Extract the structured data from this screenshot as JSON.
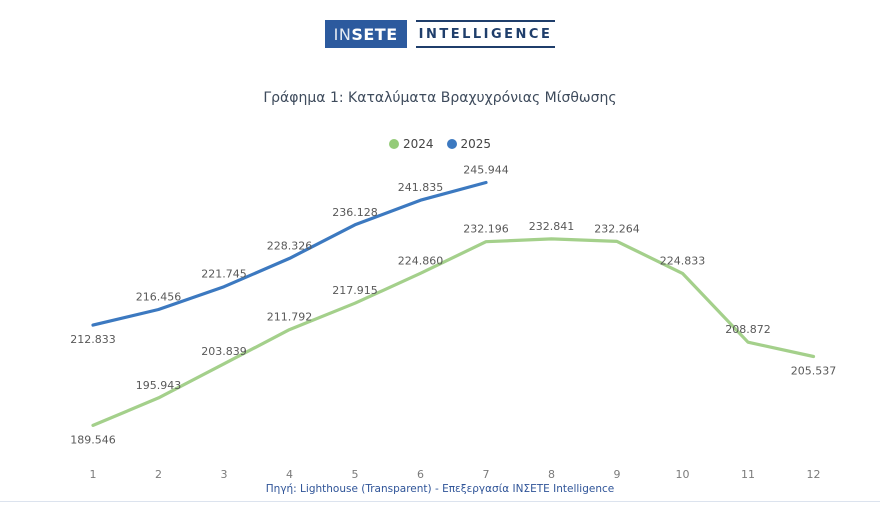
{
  "header": {
    "logo": {
      "box_text_light": "IN",
      "box_text_bold": "SETE",
      "wordmark": "INTELLIGENCE",
      "box_color": "#2C5A9E",
      "wordmark_color": "#1F3E6B"
    }
  },
  "title": "Γράφημα 1: Καταλύματα Βραχυχρόνιας Μίσθωσης",
  "legend": [
    {
      "label": "2024",
      "color": "#94CB78"
    },
    {
      "label": "2025",
      "color": "#3C79C0"
    }
  ],
  "footer": {
    "source": "Πηγή: Lighthouse (Transparent) - Επεξεργασία ΙΝΣΕΤΕ Intelligence"
  },
  "chart_data": {
    "type": "line",
    "title": "Γράφημα 1: Καταλύματα Βραχυχρόνιας Μίσθωσης",
    "categories": [
      1,
      2,
      3,
      4,
      5,
      6,
      7,
      8,
      9,
      10,
      11,
      12
    ],
    "xlabel": "",
    "ylabel": "",
    "ylim": [
      185000,
      250000
    ],
    "grid": false,
    "legend_position": "top-center",
    "series": [
      {
        "name": "2024",
        "color": "#A4D08B",
        "values": [
          189546,
          195943,
          203839,
          211792,
          217915,
          224860,
          232196,
          232841,
          232264,
          224833,
          208872,
          205537
        ],
        "labels": [
          "189.546",
          "195.943",
          "203.839",
          "211.792",
          "217.915",
          "224.860",
          "232.196",
          "232.841",
          "232.264",
          "224.833",
          "208.872",
          "205.537"
        ],
        "labels_below": [
          0,
          11
        ]
      },
      {
        "name": "2025",
        "color": "#3C79C0",
        "values": [
          212833,
          216456,
          221745,
          228326,
          236128,
          241835,
          245944
        ],
        "labels": [
          "212.833",
          "216.456",
          "221.745",
          "228.326",
          "236.128",
          "241.835",
          "245.944"
        ],
        "labels_below": [
          0
        ]
      }
    ]
  }
}
